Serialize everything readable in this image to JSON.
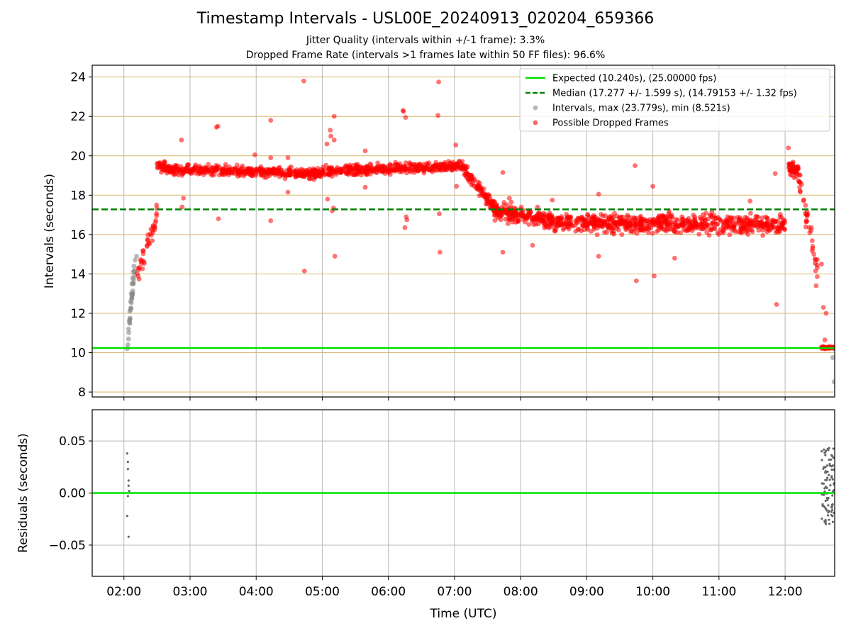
{
  "title": "Timestamp Intervals - USL00E_20240913_020204_659366",
  "subtitle_1": "Jitter Quality (intervals within +/-1 frame): 3.3%",
  "subtitle_2": "Dropped Frame Rate (intervals >1 frames late within 50 FF files): 96.6%",
  "colors": {
    "expected": "#00e000",
    "median": "#008000",
    "intervals": "#888888",
    "dropped": "#ff0000",
    "grid_minor": "#b8b8b8",
    "hline": "#d9b56d"
  },
  "chart_data": [
    {
      "type": "scatter",
      "xlabel": "",
      "ylabel": "Intervals (seconds)",
      "ylim": [
        7.75,
        24.6
      ],
      "yticks": [
        8,
        10,
        12,
        14,
        16,
        18,
        20,
        22,
        24
      ],
      "xlim_hours": [
        1.52,
        12.75
      ],
      "xticks": [
        "02:00",
        "03:00",
        "04:00",
        "05:00",
        "06:00",
        "07:00",
        "08:00",
        "09:00",
        "10:00",
        "11:00",
        "12:00"
      ],
      "grid": true,
      "legend_position": "top-right",
      "expected_interval": 10.24,
      "median_interval": 17.277,
      "legend": [
        "Expected (10.240s), (25.00000 fps)",
        "Median (17.277 +/- 1.599 s), (14.79153 +/- 1.32 fps)",
        "Intervals, max (23.779s), min (8.521s)",
        "Possible Dropped Frames"
      ],
      "series": [
        {
          "name": "Intervals, max (23.779s), min (8.521s)",
          "points": [
            [
              2.05,
              10.2
            ],
            [
              2.06,
              10.4
            ],
            [
              2.07,
              10.7
            ],
            [
              2.07,
              11.2
            ],
            [
              2.08,
              11.6
            ],
            [
              2.09,
              12.1
            ],
            [
              2.1,
              12.6
            ],
            [
              2.11,
              13.0
            ],
            [
              2.12,
              13.5
            ],
            [
              2.13,
              13.8
            ],
            [
              2.14,
              14.1
            ],
            [
              2.15,
              14.4
            ],
            [
              2.17,
              14.7
            ],
            [
              2.19,
              14.9
            ],
            [
              12.72,
              9.75
            ],
            [
              12.74,
              8.52
            ],
            [
              12.7,
              10.22
            ]
          ]
        },
        {
          "name": "Possible Dropped Frames",
          "segments": [
            {
              "t0": 2.2,
              "t1": 2.5,
              "v0": 13.8,
              "v1": 17.0,
              "n": 40,
              "jitter": 0.5
            },
            {
              "t0": 2.5,
              "t1": 2.75,
              "v0": 19.5,
              "v1": 19.3,
              "n": 60,
              "jitter": 0.25
            },
            {
              "t0": 2.75,
              "t1": 5.0,
              "v0": 19.3,
              "v1": 19.1,
              "n": 420,
              "jitter": 0.25
            },
            {
              "t0": 5.0,
              "t1": 7.1,
              "v0": 19.2,
              "v1": 19.5,
              "n": 380,
              "jitter": 0.25
            },
            {
              "t0": 7.1,
              "t1": 7.6,
              "v0": 19.5,
              "v1": 17.4,
              "n": 110,
              "jitter": 0.35
            },
            {
              "t0": 7.6,
              "t1": 8.5,
              "v0": 17.2,
              "v1": 16.7,
              "n": 220,
              "jitter": 0.4
            },
            {
              "t0": 8.5,
              "t1": 12.0,
              "v0": 16.6,
              "v1": 16.5,
              "n": 700,
              "jitter": 0.45
            },
            {
              "t0": 12.05,
              "t1": 12.2,
              "v0": 19.4,
              "v1": 19.3,
              "n": 45,
              "jitter": 0.4
            },
            {
              "t0": 12.2,
              "t1": 12.52,
              "v0": 19.0,
              "v1": 13.8,
              "n": 40,
              "jitter": 0.6
            },
            {
              "t0": 12.55,
              "t1": 12.75,
              "v0": 10.25,
              "v1": 10.25,
              "n": 40,
              "jitter": 0.05
            }
          ],
          "outliers": [
            [
              2.87,
              20.8
            ],
            [
              2.88,
              17.4
            ],
            [
              2.9,
              17.85
            ],
            [
              3.4,
              21.45
            ],
            [
              3.42,
              21.5
            ],
            [
              3.43,
              16.8
            ],
            [
              3.98,
              20.05
            ],
            [
              4.22,
              21.8
            ],
            [
              4.22,
              16.7
            ],
            [
              4.22,
              19.9
            ],
            [
              4.48,
              18.15
            ],
            [
              4.48,
              19.9
            ],
            [
              4.72,
              23.8
            ],
            [
              4.73,
              14.15
            ],
            [
              5.07,
              20.6
            ],
            [
              5.08,
              17.8
            ],
            [
              5.12,
              21.3
            ],
            [
              5.13,
              21.0
            ],
            [
              5.15,
              17.2
            ],
            [
              5.17,
              17.35
            ],
            [
              5.18,
              20.8
            ],
            [
              5.18,
              22.0
            ],
            [
              5.19,
              14.9
            ],
            [
              5.65,
              20.25
            ],
            [
              5.65,
              18.4
            ],
            [
              6.22,
              22.3
            ],
            [
              6.23,
              22.25
            ],
            [
              6.25,
              16.35
            ],
            [
              6.26,
              21.95
            ],
            [
              6.27,
              16.9
            ],
            [
              6.28,
              16.75
            ],
            [
              6.75,
              22.05
            ],
            [
              6.76,
              23.75
            ],
            [
              6.77,
              17.05
            ],
            [
              6.78,
              15.1
            ],
            [
              7.02,
              20.55
            ],
            [
              7.03,
              18.45
            ],
            [
              7.73,
              19.15
            ],
            [
              7.73,
              15.1
            ],
            [
              7.83,
              17.85
            ],
            [
              8.18,
              15.45
            ],
            [
              8.48,
              17.75
            ],
            [
              9.18,
              18.05
            ],
            [
              9.18,
              14.9
            ],
            [
              9.73,
              19.5
            ],
            [
              9.75,
              13.65
            ],
            [
              10.0,
              18.45
            ],
            [
              10.02,
              13.9
            ],
            [
              10.33,
              14.8
            ],
            [
              11.47,
              17.7
            ],
            [
              11.85,
              19.1
            ],
            [
              11.87,
              12.45
            ],
            [
              12.05,
              20.4
            ],
            [
              12.47,
              13.4
            ],
            [
              12.55,
              14.5
            ],
            [
              12.58,
              12.3
            ],
            [
              12.62,
              12.0
            ],
            [
              12.6,
              10.65
            ]
          ]
        }
      ]
    },
    {
      "type": "scatter",
      "xlabel": "Time (UTC)",
      "ylabel": "Residuals (seconds)",
      "ylim": [
        -0.08,
        0.08
      ],
      "yticks": [
        -0.05,
        0.0,
        0.05
      ],
      "ytick_labels": [
        "−0.05",
        "0.00",
        "0.05"
      ],
      "xlim_hours": [
        1.52,
        12.75
      ],
      "xticks": [
        "02:00",
        "03:00",
        "04:00",
        "05:00",
        "06:00",
        "07:00",
        "08:00",
        "09:00",
        "10:00",
        "11:00",
        "12:00"
      ],
      "grid": true,
      "baseline": 0.0,
      "series": [
        {
          "name": "",
          "points": [
            [
              2.05,
              0.038
            ],
            [
              2.06,
              0.03
            ],
            [
              2.06,
              0.023
            ],
            [
              2.07,
              0.012
            ],
            [
              2.07,
              0.007
            ],
            [
              2.08,
              0.002
            ],
            [
              2.06,
              -0.003
            ],
            [
              2.05,
              -0.022
            ],
            [
              2.07,
              -0.042
            ]
          ],
          "cluster": {
            "t0": 12.55,
            "t1": 12.75,
            "min": -0.03,
            "max": 0.045,
            "n": 90
          }
        }
      ]
    }
  ]
}
